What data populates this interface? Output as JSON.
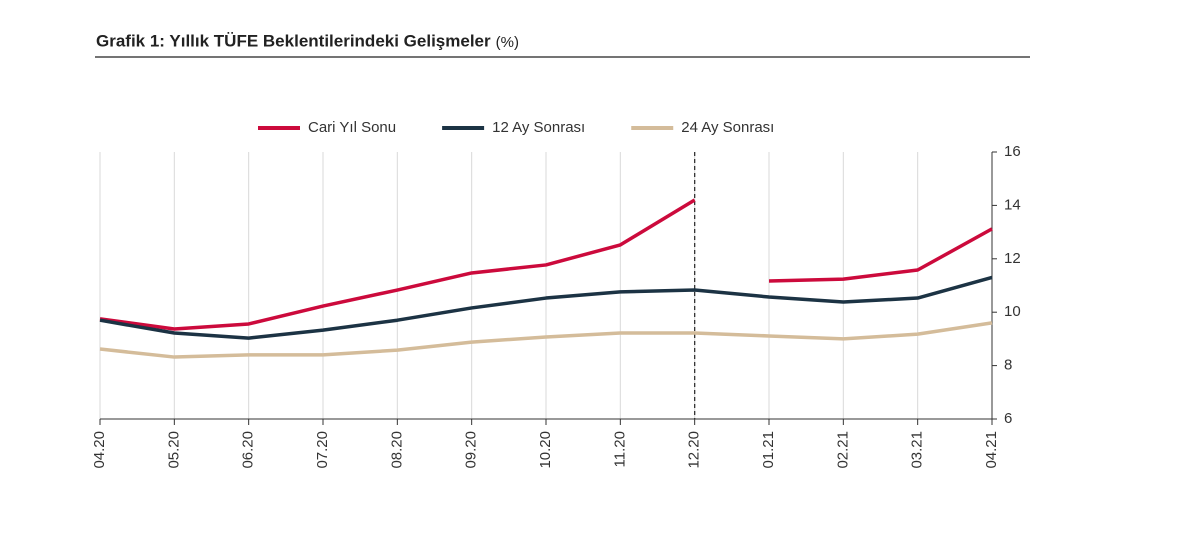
{
  "chart_data": {
    "type": "line",
    "title": "Grafik 1: Yıllık TÜFE Beklentilerindeki Gelişmeler",
    "subtitle": "(%)",
    "categories": [
      "04.20",
      "05.20",
      "06.20",
      "07.20",
      "08.20",
      "09.20",
      "10.20",
      "11.20",
      "12.20",
      "01.21",
      "02.21",
      "03.21",
      "04.21"
    ],
    "series": [
      {
        "name": "Cari Yıl Sonu",
        "color": "#cc0a3c",
        "break_at_vline": true,
        "values": [
          9.75,
          9.37,
          9.56,
          10.23,
          10.83,
          11.47,
          11.77,
          12.52,
          14.2,
          11.17,
          11.24,
          11.58,
          13.12
        ]
      },
      {
        "name": "12 Ay Sonrası",
        "color": "#1c3344",
        "values": [
          9.7,
          9.22,
          9.03,
          9.33,
          9.7,
          10.16,
          10.53,
          10.76,
          10.83,
          10.57,
          10.38,
          10.53,
          11.3
        ]
      },
      {
        "name": "24 Ay Sonrası",
        "color": "#d4bc9a",
        "values": [
          8.62,
          8.32,
          8.4,
          8.4,
          8.58,
          8.88,
          9.07,
          9.22,
          9.22,
          9.11,
          9.0,
          9.18,
          9.6
        ]
      }
    ],
    "ylim": [
      6,
      16
    ],
    "yticks": [
      6,
      8,
      10,
      12,
      14,
      16
    ],
    "y_axis_side": "right",
    "vertical_grid": true,
    "vline": "12.20",
    "legend": "top"
  }
}
